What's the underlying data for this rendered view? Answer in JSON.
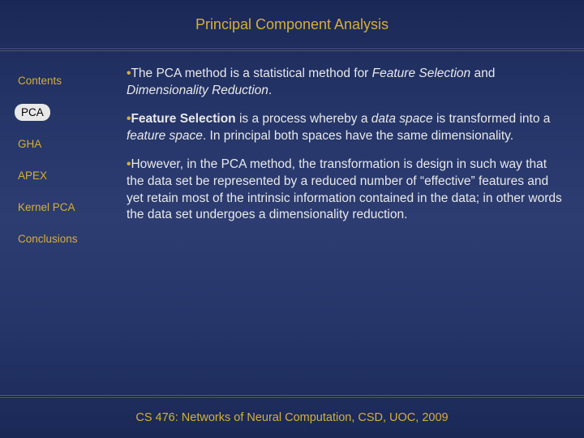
{
  "colors": {
    "accent": "#d4af37",
    "text": "#e8e8e8",
    "bg_top": "#1a2856",
    "bg_mid": "#2d3d72",
    "divider": "#000000",
    "active_bg": "#e8e8e8",
    "active_fg": "#000000"
  },
  "typography": {
    "title_fontsize": 18,
    "sidebar_fontsize": 13.5,
    "body_fontsize": 15.5,
    "footer_fontsize": 14.5,
    "font_family": "Arial"
  },
  "header": {
    "title": "Principal Component Analysis"
  },
  "sidebar": {
    "items": [
      {
        "label": "Contents",
        "active": false
      },
      {
        "label": "PCA",
        "active": true
      },
      {
        "label": "GHA",
        "active": false
      },
      {
        "label": "APEX",
        "active": false
      },
      {
        "label": "Kernel PCA",
        "active": false
      },
      {
        "label": "Conclusions",
        "active": false
      }
    ]
  },
  "content": {
    "b1_pre": "The PCA method is a statistical method for ",
    "b1_i1": "Feature Selection",
    "b1_mid": " and ",
    "b1_i2": "Dimensionality Reduction",
    "b1_post": ".",
    "b2_bold": "Feature Selection",
    "b2_t1": " is a process whereby a ",
    "b2_i1": "data space",
    "b2_t2": " is transformed into a ",
    "b2_i2": "feature space",
    "b2_t3": ". In principal both spaces have the same dimensionality.",
    "b3": "However, in the PCA method, the transformation is design in such way that the data set be represented by a reduced number of “effective” features and yet retain most of the intrinsic information contained in the data; in other words the data set undergoes a dimensionality reduction."
  },
  "footer": {
    "text": "CS 476: Networks of Neural Computation, CSD, UOC, 2009"
  }
}
